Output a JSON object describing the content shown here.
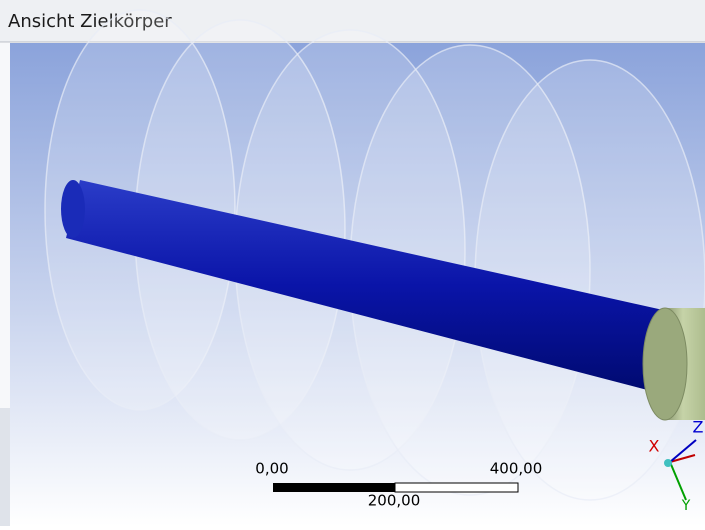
{
  "window": {
    "title": "Ansicht Zielkörper"
  },
  "scale_bar": {
    "labels": [
      "0,00",
      "400,00",
      "200,00"
    ]
  },
  "triad": {
    "x": "X",
    "y": "Y",
    "z": "Z"
  }
}
